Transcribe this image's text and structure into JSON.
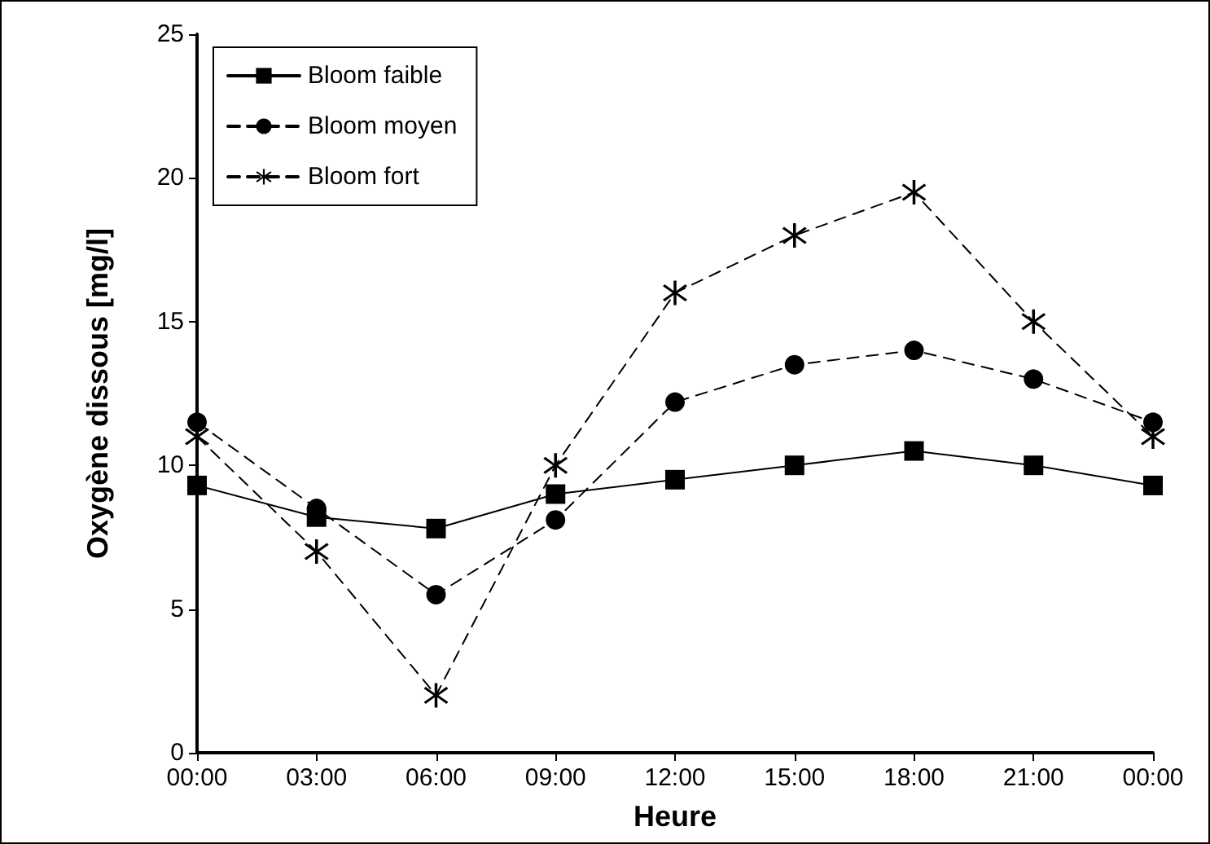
{
  "chart_data": {
    "type": "line",
    "xlabel": "Heure",
    "ylabel": "Oxygène dissous [mg/l]",
    "categories": [
      "00:00",
      "03:00",
      "06:00",
      "09:00",
      "12:00",
      "15:00",
      "18:00",
      "21:00",
      "00:00"
    ],
    "series": [
      {
        "name": "Bloom faible",
        "color": "#000000",
        "marker": "square",
        "line_style": "solid",
        "values": [
          9.3,
          8.2,
          7.8,
          9.0,
          9.5,
          10.0,
          10.5,
          10.0,
          9.3
        ]
      },
      {
        "name": "Bloom moyen",
        "color": "#000000",
        "marker": "circle",
        "line_style": "dashed",
        "values": [
          11.5,
          8.5,
          5.5,
          8.1,
          12.2,
          13.5,
          14.0,
          13.0,
          11.5
        ]
      },
      {
        "name": "Bloom fort",
        "color": "#000000",
        "marker": "star",
        "line_style": "dashed",
        "values": [
          11.0,
          7.0,
          2.0,
          10.0,
          16.0,
          18.0,
          19.5,
          15.0,
          11.0
        ]
      }
    ],
    "ylim": [
      0,
      25
    ],
    "yticks": [
      0,
      5,
      10,
      15,
      20,
      25
    ],
    "grid": false,
    "legend": "top left"
  }
}
